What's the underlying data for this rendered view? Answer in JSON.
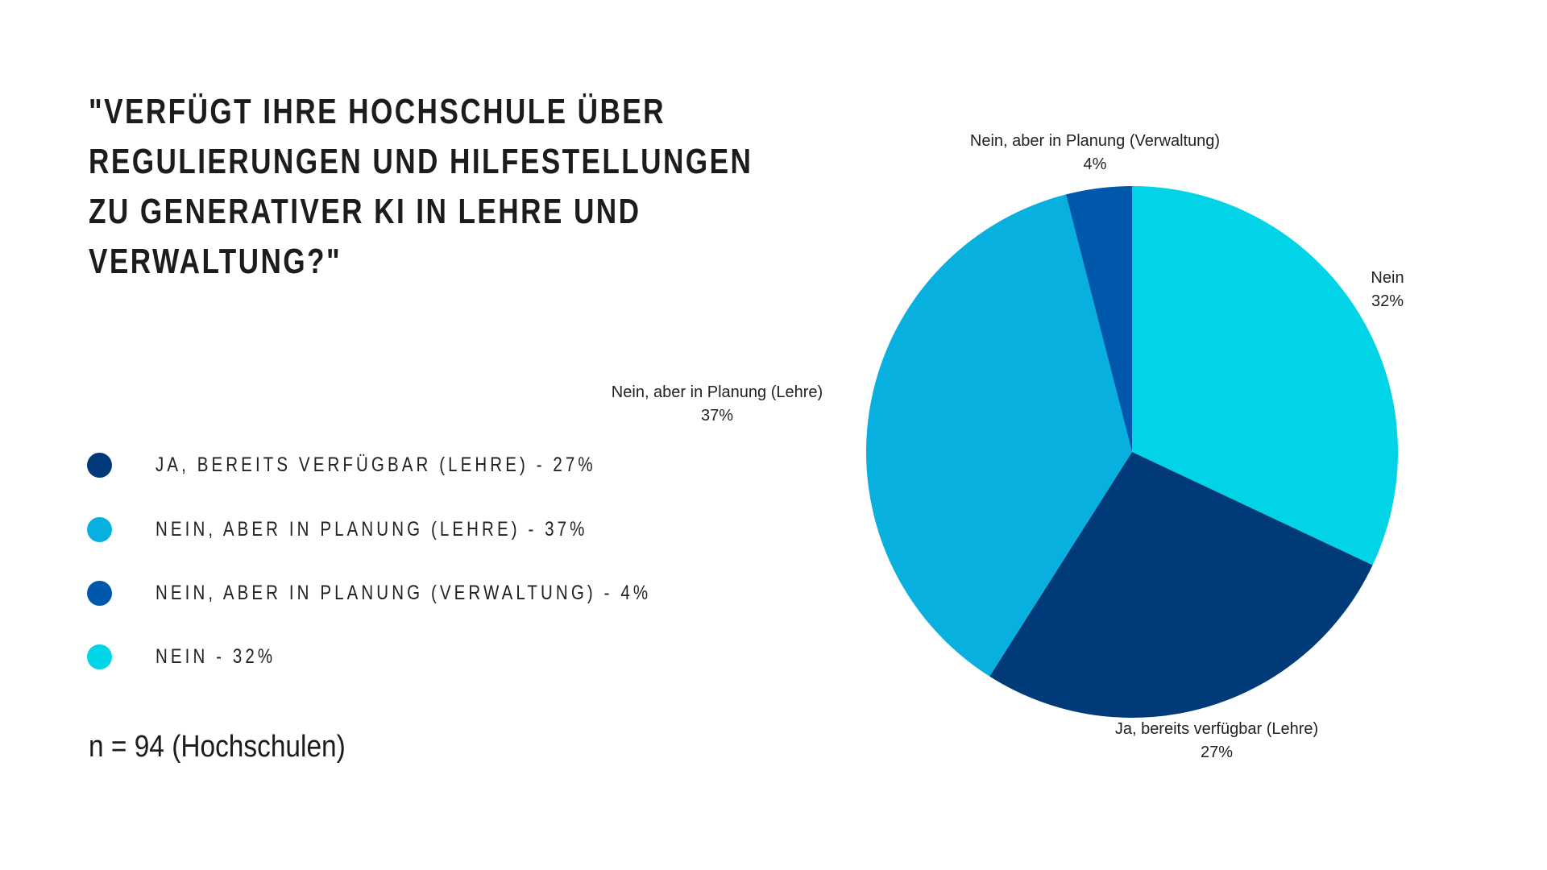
{
  "chart_data": {
    "type": "pie",
    "title_lines": [
      "\"VERFÜGT IHRE HOCHSCHULE ÜBER",
      "REGULIERUNGEN UND HILFESTELLUNGEN",
      "ZU GENERATIVER KI IN LEHRE UND",
      "VERWALTUNG?\""
    ],
    "slices": [
      {
        "label": "Nein",
        "value": 32,
        "value_label": "32%",
        "color": "#00d4e6"
      },
      {
        "label": "Ja, bereits verfügbar (Lehre)",
        "value": 27,
        "value_label": "27%",
        "color": "#003a78"
      },
      {
        "label": "Nein, aber in Planung (Lehre)",
        "value": 37,
        "value_label": "37%",
        "color": "#08b0df"
      },
      {
        "label": "Nein, aber in Planung (Verwaltung)",
        "value": 4,
        "value_label": "4%",
        "color": "#0058ad"
      }
    ],
    "legend": [
      {
        "text": "JA, BEREITS VERFÜGBAR (LEHRE) - 27%",
        "color": "#003a78"
      },
      {
        "text": "NEIN, ABER IN PLANUNG (LEHRE) - 37%",
        "color": "#08b0df"
      },
      {
        "text": "NEIN, ABER IN PLANUNG (VERWALTUNG) - 4%",
        "color": "#0058ad"
      },
      {
        "text": "NEIN - 32%",
        "color": "#00d4e6"
      }
    ],
    "legend_placement": "left",
    "note": "n = 94 (Hochschulen)"
  }
}
